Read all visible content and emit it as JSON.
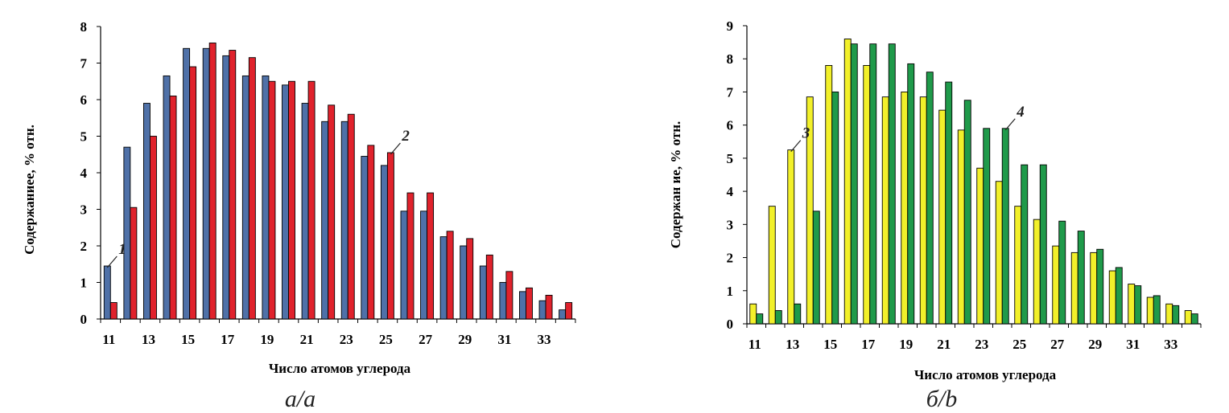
{
  "chart_data": [
    {
      "type": "bar",
      "caption": "а/а",
      "xlabel": "Число атомов углерода",
      "ylabel": "Содержаниее, % отн.",
      "ylim": [
        0,
        8
      ],
      "yticks": [
        "0",
        "1",
        "2",
        "3",
        "4",
        "5",
        "6",
        "7",
        "8"
      ],
      "xticklabels": [
        "11",
        "13",
        "15",
        "17",
        "19",
        "21",
        "23",
        "25",
        "27",
        "29",
        "31",
        "33"
      ],
      "categories": [
        11,
        12,
        13,
        14,
        15,
        16,
        17,
        18,
        19,
        20,
        21,
        22,
        23,
        24,
        25,
        26,
        27,
        28,
        29,
        30,
        31,
        32,
        33,
        34
      ],
      "series": [
        {
          "name": "1",
          "color": "#4f71a8",
          "values": [
            1.45,
            4.7,
            5.9,
            6.65,
            7.4,
            7.4,
            7.2,
            6.65,
            6.65,
            6.4,
            5.9,
            5.4,
            5.4,
            4.45,
            4.2,
            2.95,
            2.95,
            2.25,
            2.0,
            1.45,
            1.0,
            0.75,
            0.5,
            0.25
          ]
        },
        {
          "name": "2",
          "color": "#e0222c",
          "values": [
            0.45,
            3.05,
            5.0,
            6.1,
            6.9,
            7.55,
            7.35,
            7.15,
            6.5,
            6.5,
            6.5,
            5.85,
            5.6,
            4.75,
            4.55,
            3.45,
            3.45,
            2.4,
            2.2,
            1.75,
            1.3,
            0.85,
            0.65,
            0.45
          ]
        }
      ],
      "annotations": [
        {
          "label": "1",
          "series": 0,
          "index": 0
        },
        {
          "label": "2",
          "series": 1,
          "index": 14
        }
      ]
    },
    {
      "type": "bar",
      "caption": "б/b",
      "xlabel": "Число атомов углерода",
      "ylabel": "Содержан ие, % отн.",
      "ylim": [
        0,
        9
      ],
      "yticks": [
        "0",
        "1",
        "2",
        "3",
        "4",
        "5",
        "6",
        "7",
        "8",
        "9"
      ],
      "xticklabels": [
        "11",
        "13",
        "15",
        "17",
        "19",
        "21",
        "23",
        "25",
        "27",
        "29",
        "31",
        "33"
      ],
      "categories": [
        11,
        12,
        13,
        14,
        15,
        16,
        17,
        18,
        19,
        20,
        21,
        22,
        23,
        24,
        25,
        26,
        27,
        28,
        29,
        30,
        31,
        32,
        33,
        34
      ],
      "series": [
        {
          "name": "3",
          "color": "#f2f02a",
          "values": [
            0.6,
            3.55,
            5.25,
            6.85,
            7.8,
            8.6,
            7.8,
            6.85,
            7.0,
            6.85,
            6.45,
            5.85,
            4.7,
            4.3,
            3.55,
            3.15,
            2.35,
            2.15,
            2.15,
            1.6,
            1.2,
            0.8,
            0.6,
            0.4
          ]
        },
        {
          "name": "4",
          "color": "#1f9a4a",
          "values": [
            0.3,
            0.4,
            0.6,
            3.4,
            7.0,
            8.45,
            8.45,
            8.45,
            7.85,
            7.6,
            7.3,
            6.75,
            5.9,
            5.9,
            4.8,
            4.8,
            3.1,
            2.8,
            2.25,
            1.7,
            1.15,
            0.85,
            0.55,
            0.3
          ]
        }
      ],
      "annotations": [
        {
          "label": "3",
          "series": 0,
          "index": 2
        },
        {
          "label": "4",
          "series": 1,
          "index": 13
        }
      ]
    }
  ]
}
